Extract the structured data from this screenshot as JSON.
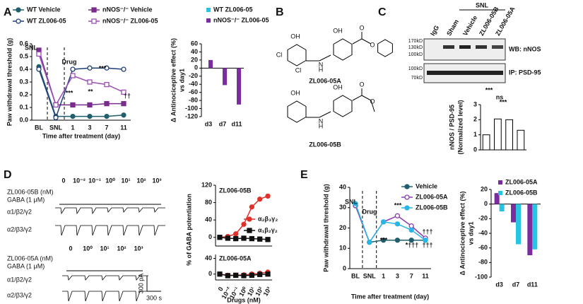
{
  "panels": [
    "A",
    "B",
    "C",
    "D",
    "E"
  ],
  "structures": {
    "names": [
      "ZL006-05A",
      "ZL006-05B"
    ],
    "atoms": [
      [
        "OH",
        "OH",
        "O",
        "O",
        "Cl",
        "Cl",
        "N",
        "H"
      ],
      [
        "OH",
        "OH",
        "O",
        "O",
        "N",
        "H"
      ]
    ]
  },
  "blot": {
    "group": "SNL",
    "lanes": [
      "IgG",
      "Sham",
      "Vehicle",
      "ZL006-05B",
      "ZL006-05A"
    ],
    "markers_top": [
      "170kD",
      "130kD",
      "100kD"
    ],
    "markers_bottom": [
      "100kD",
      "70kD"
    ],
    "probes": [
      "WB: nNOS",
      "IP: PSD-95"
    ]
  },
  "traces": {
    "blocks": [
      {
        "drug": "ZL006-05B (nM)",
        "gaba": "GABA (1 μM)",
        "doses": [
          "0",
          "10⁻²",
          "10⁻¹",
          "10⁰",
          "10¹",
          "10²",
          "10³"
        ],
        "receptors": [
          "α1/β2/γ2",
          "α2/β3/γ2"
        ]
      },
      {
        "drug": "ZL006-05A (nM)",
        "gaba": "GABA (1 μM)",
        "doses": [
          "0",
          "10⁰",
          "10¹",
          "10²",
          "10³"
        ],
        "receptors": [
          "α1/β2/γ2",
          "α2/β3/γ2"
        ]
      }
    ],
    "scale": [
      "300 pA",
      "300 s"
    ]
  },
  "chart_data": [
    {
      "type": "line",
      "xlabel": "Time after treatment (day)",
      "ylabel": [
        "Paw withdrawal threshold (g)"
      ],
      "categories": [
        "BL",
        "SNL",
        "1",
        "3",
        "7",
        "11"
      ],
      "ylim": [
        0,
        0.6
      ],
      "yticks": [
        {
          "value": 0,
          "label": "0.0"
        },
        {
          "value": 0.1,
          "label": "0.1"
        },
        {
          "value": 0.2,
          "label": "0.2"
        },
        {
          "value": 0.3,
          "label": "0.3"
        },
        {
          "value": 0.4,
          "label": "0.4"
        },
        {
          "value": 0.5,
          "label": "0.5"
        },
        {
          "value": 0.6,
          "label": "0.6"
        }
      ],
      "series": [
        {
          "name": "WT Vehicle",
          "color": "#1f5f6b",
          "marker": "circle",
          "filled": true,
          "values": [
            0.42,
            0.03,
            0.03,
            0.03,
            0.03,
            0.04
          ]
        },
        {
          "name": "nNOS⁻/⁻ Vehicle",
          "color": "#7b2d8e",
          "marker": "square",
          "filled": true,
          "values": [
            0.55,
            0.12,
            0.12,
            0.12,
            0.13,
            0.13
          ]
        },
        {
          "name": "WT ZL006-05",
          "color": "#1f3f7b",
          "marker": "circle",
          "filled": false,
          "values": [
            0.4,
            0.02,
            0.4,
            0.41,
            0.41,
            0.4
          ]
        },
        {
          "name": "nNOS⁻/⁻ ZL006-05",
          "color": "#9b4fb5",
          "marker": "square",
          "filled": false,
          "values": [
            0.52,
            0.12,
            0.35,
            0.3,
            0.28,
            0.22
          ]
        }
      ],
      "annotations": [
        "SNL",
        "Drug",
        "***",
        "***",
        "**",
        "††"
      ]
    },
    {
      "type": "bar",
      "ylabel": [
        "Δ Antinociceptive effect (%)",
        "vs day1"
      ],
      "categories": [
        "d3",
        "d7",
        "d11"
      ],
      "ylim": [
        -120,
        60
      ],
      "yticks": [
        -120,
        -100,
        -80,
        -60,
        -40,
        -20,
        0,
        20,
        40,
        60
      ],
      "series": [
        {
          "name": "WT ZL006-05",
          "color": "#29c4e0",
          "values": [
            0,
            0,
            0
          ]
        },
        {
          "name": "nNOS⁻/⁻ ZL006-05",
          "color": "#7b2d9e",
          "values": [
            20,
            -42,
            -90
          ]
        }
      ]
    },
    {
      "type": "bar",
      "ylabel": [
        "nNOS / PSD-95",
        "(Normalized level)"
      ],
      "categories": [
        null,
        null,
        null,
        null
      ],
      "ylim": [
        0,
        3
      ],
      "yticks": [
        0,
        1,
        2,
        3
      ],
      "color": "#ffffff",
      "values": [
        1,
        2.05,
        2,
        1.3
      ],
      "annotations": [
        "***",
        "ns",
        "***"
      ]
    },
    {
      "type": "line",
      "title": "ZL006-05B",
      "ylabel": [
        "% of GABA potentiation"
      ],
      "categories": [
        null,
        null,
        null,
        null,
        null,
        null,
        null
      ],
      "ylim": [
        -20,
        120
      ],
      "yticks": [
        0,
        40,
        80,
        120
      ],
      "series": [
        {
          "name": "α₂β₃γ₂",
          "color": "#e0302a",
          "marker": "circle",
          "filled": true,
          "values": [
            0,
            2,
            8,
            30,
            70,
            88,
            95
          ]
        },
        {
          "name": "α₁β₂γ₂",
          "color": "#111111",
          "marker": "square",
          "filled": true,
          "values": [
            0,
            -2,
            -3,
            -2,
            -3,
            -4,
            -5
          ]
        }
      ]
    },
    {
      "type": "line",
      "title": "ZL006-05A",
      "xlabel": "Drugs (nM)",
      "categories": [
        "0",
        "10⁻²",
        "10⁻¹",
        "10⁰",
        "10¹",
        "10²",
        "10³"
      ],
      "ylim": [
        -15,
        50
      ],
      "yticks": [
        0,
        40
      ],
      "series": [
        {
          "color": "#e0302a",
          "marker": "circle",
          "filled": true,
          "values": [
            0,
            -3,
            -3,
            -2,
            0,
            2,
            5
          ]
        },
        {
          "color": "#111111",
          "marker": "square",
          "filled": true,
          "values": [
            0,
            -4,
            -3,
            -4,
            -3,
            -1,
            0
          ]
        }
      ]
    },
    {
      "type": "line",
      "xlabel": "Time after treatment (day)",
      "ylabel": [
        "Paw withdrawal threshold (g)"
      ],
      "categories": [
        "BL",
        "SNL",
        "1",
        "3",
        "7",
        "11"
      ],
      "ylim": [
        0,
        40
      ],
      "yticks": [
        0,
        10,
        20,
        30,
        40
      ],
      "series": [
        {
          "name": "Vehicle",
          "color": "#1f5f6b",
          "marker": "circle",
          "filled": true,
          "values": [
            31,
            13,
            14,
            14,
            14,
            14
          ]
        },
        {
          "name": "ZL006-05A",
          "color": "#8a3fb0",
          "marker": "circle",
          "filled": false,
          "values": [
            31,
            13,
            23,
            26,
            21,
            15
          ]
        },
        {
          "name": "ZL006-05B",
          "color": "#29b6e6",
          "marker": "circle",
          "filled": true,
          "values": [
            32,
            13,
            23,
            22,
            19,
            14
          ]
        }
      ],
      "annotations": [
        "SNL",
        "Drug",
        "***",
        "***",
        "*†††",
        "†††",
        "†††"
      ]
    },
    {
      "type": "bar",
      "ylabel": [
        "Δ Antinociceptive effect (%)",
        "vs day1"
      ],
      "categories": [
        "d3",
        "d7",
        "d11"
      ],
      "ylim": [
        -100,
        20
      ],
      "yticks": [
        -100,
        -80,
        -60,
        -40,
        -20,
        0,
        20
      ],
      "series": [
        {
          "name": "ZL006-05A",
          "color": "#7b2d9e",
          "values": [
            15,
            -25,
            -70
          ]
        },
        {
          "name": "ZL006-05B",
          "color": "#29c4e0",
          "values": [
            -10,
            -55,
            -62
          ]
        }
      ]
    }
  ]
}
